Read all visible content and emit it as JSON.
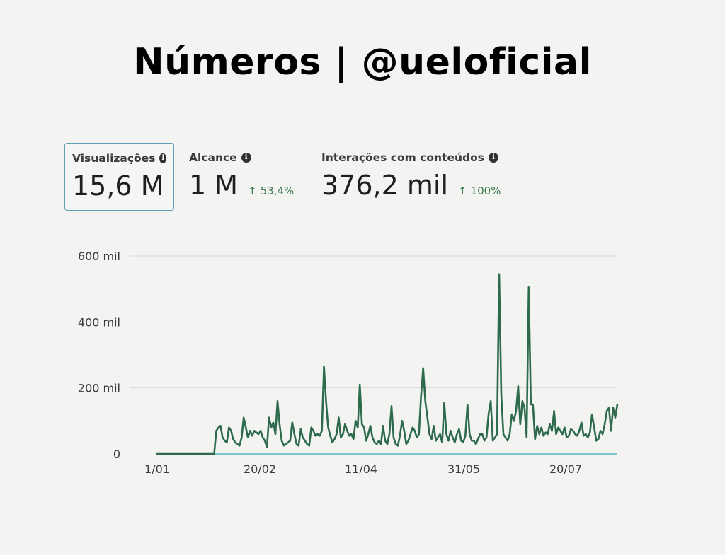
{
  "title": "Números | @ueloficial",
  "metrics": [
    {
      "label": "Visualizações",
      "value": "15,6 M",
      "change": "",
      "selected": true
    },
    {
      "label": "Alcance",
      "value": "1 M",
      "change": "53,4%",
      "selected": false
    },
    {
      "label": "Interações com conteúdos",
      "value": "376,2 mil",
      "change": "100%",
      "selected": false
    }
  ],
  "icons": {
    "info": "info-icon",
    "change": "arrow-up-icon"
  },
  "colors": {
    "line": "#2e6b4c",
    "baseline": "#7fc4c9",
    "accent_change": "#3d7a4c"
  },
  "chart_data": {
    "type": "line",
    "title": "",
    "xlabel": "",
    "ylabel": "",
    "ylim": [
      0,
      600000
    ],
    "y_ticks": [
      0,
      200000,
      400000,
      600000
    ],
    "y_tick_labels": [
      "0",
      "200 mil",
      "400 mil",
      "600 mil"
    ],
    "x_tick_labels": [
      "1/01",
      "20/02",
      "11/04",
      "31/05",
      "20/07"
    ],
    "grid": true,
    "legend": "none",
    "series": [
      {
        "values": [
          0,
          0,
          0,
          0,
          0,
          0,
          0,
          0,
          0,
          0,
          0,
          0,
          0,
          0,
          0,
          0,
          0,
          0,
          0,
          0,
          0,
          0,
          0,
          0,
          0,
          0,
          0,
          0,
          70000,
          80000,
          85000,
          50000,
          40000,
          35000,
          80000,
          70000,
          45000,
          35000,
          30000,
          25000,
          50000,
          110000,
          80000,
          50000,
          70000,
          55000,
          70000,
          65000,
          60000,
          70000,
          50000,
          40000,
          20000,
          110000,
          80000,
          95000,
          60000,
          160000,
          90000,
          40000,
          25000,
          30000,
          35000,
          40000,
          95000,
          60000,
          30000,
          25000,
          75000,
          50000,
          40000,
          30000,
          25000,
          80000,
          70000,
          55000,
          60000,
          55000,
          70000,
          265000,
          160000,
          80000,
          55000,
          35000,
          45000,
          60000,
          110000,
          50000,
          60000,
          90000,
          70000,
          55000,
          60000,
          45000,
          100000,
          80000,
          210000,
          90000,
          80000,
          40000,
          60000,
          85000,
          50000,
          35000,
          30000,
          40000,
          30000,
          85000,
          40000,
          30000,
          60000,
          145000,
          50000,
          30000,
          25000,
          55000,
          100000,
          70000,
          30000,
          40000,
          60000,
          80000,
          70000,
          50000,
          60000,
          175000,
          260000,
          160000,
          110000,
          60000,
          45000,
          85000,
          40000,
          50000,
          60000,
          35000,
          155000,
          60000,
          40000,
          70000,
          50000,
          35000,
          60000,
          75000,
          40000,
          35000,
          55000,
          150000,
          60000,
          40000,
          40000,
          30000,
          45000,
          60000,
          60000,
          40000,
          50000,
          120000,
          160000,
          40000,
          50000,
          60000,
          545000,
          180000,
          60000,
          50000,
          40000,
          60000,
          120000,
          100000,
          130000,
          205000,
          90000,
          160000,
          140000,
          50000,
          505000,
          150000,
          150000,
          45000,
          85000,
          60000,
          80000,
          55000,
          65000,
          60000,
          90000,
          70000,
          130000,
          60000,
          80000,
          70000,
          60000,
          80000,
          50000,
          55000,
          75000,
          70000,
          60000,
          55000,
          70000,
          95000,
          55000,
          60000,
          50000,
          65000,
          120000,
          80000,
          40000,
          45000,
          70000,
          60000,
          90000,
          130000,
          140000,
          70000,
          140000,
          110000,
          150000
        ]
      }
    ]
  }
}
